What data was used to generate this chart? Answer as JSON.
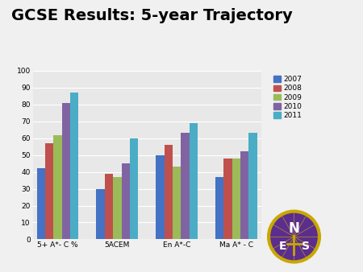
{
  "title": "GCSE Results: 5-year Trajectory",
  "categories": [
    "5+ A*- C %",
    "5ACEM",
    "En A*-C",
    "Ma A* - C"
  ],
  "years": [
    "2007",
    "2008",
    "2009",
    "2010",
    "2011"
  ],
  "values": {
    "5+ A*- C %": [
      42,
      57,
      62,
      81,
      87
    ],
    "5ACEM": [
      30,
      39,
      37,
      45,
      60
    ],
    "En A*-C": [
      50,
      56,
      43,
      63,
      69
    ],
    "Ma A* - C": [
      37,
      48,
      48,
      52,
      63
    ]
  },
  "colors": [
    "#4472C4",
    "#C0504D",
    "#9BBB59",
    "#8064A2",
    "#4BACC6"
  ],
  "ylim": [
    0,
    100
  ],
  "yticks": [
    0,
    10,
    20,
    30,
    40,
    50,
    60,
    70,
    80,
    90,
    100
  ],
  "fig_bg": "#F0F0F0",
  "plot_bg": "#E8E8E8",
  "grid_color": "#FFFFFF",
  "title_fontsize": 14,
  "tick_fontsize": 6.5,
  "legend_fontsize": 6.5,
  "bar_width": 0.14,
  "logo_colors": {
    "bg": "#5B2D8E",
    "ring": "#C8A800",
    "text_N": "#FFFFFF",
    "text_ES": "#FFFFFF",
    "cross": "#C8A800"
  }
}
